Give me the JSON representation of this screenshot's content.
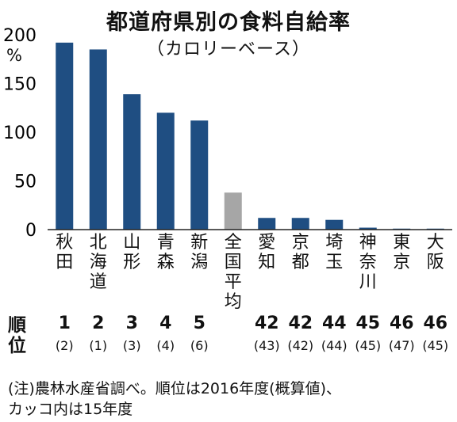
{
  "title": "都道府県別の食料自給率",
  "subtitle": "（カロリーベース）",
  "unit": "%",
  "rank_header": "順位",
  "chart_data": {
    "type": "bar",
    "title": "都道府県別の食料自給率",
    "subtitle": "（カロリーベース）",
    "ylabel": "%",
    "ylim": [
      0,
      200
    ],
    "yticks": [
      "0",
      "50",
      "100",
      "150",
      "200"
    ],
    "grid": false,
    "categories": [
      "秋田",
      "北海道",
      "山形",
      "青森",
      "新潟",
      "全国平均",
      "愛知",
      "京都",
      "埼玉",
      "神奈川",
      "東京",
      "大阪"
    ],
    "values": [
      192,
      185,
      139,
      120,
      112,
      38,
      12,
      12,
      10,
      2,
      1,
      1
    ],
    "colors": {
      "prefecture": "#1f4e82",
      "national_average": "#a6a6a6"
    },
    "ranks": [
      "1",
      "2",
      "3",
      "4",
      "5",
      "",
      "42",
      "42",
      "44",
      "45",
      "46",
      "46"
    ],
    "previous_ranks": [
      "(2)",
      "(1)",
      "(3)",
      "(4)",
      "(6)",
      "",
      "(43)",
      "(42)",
      "(44)",
      "(45)",
      "(47)",
      "(45)"
    ]
  },
  "note_lines": [
    "(注)農林水産省調べ。順位は2016年度(概算値)、",
    "カッコ内は15年度"
  ]
}
